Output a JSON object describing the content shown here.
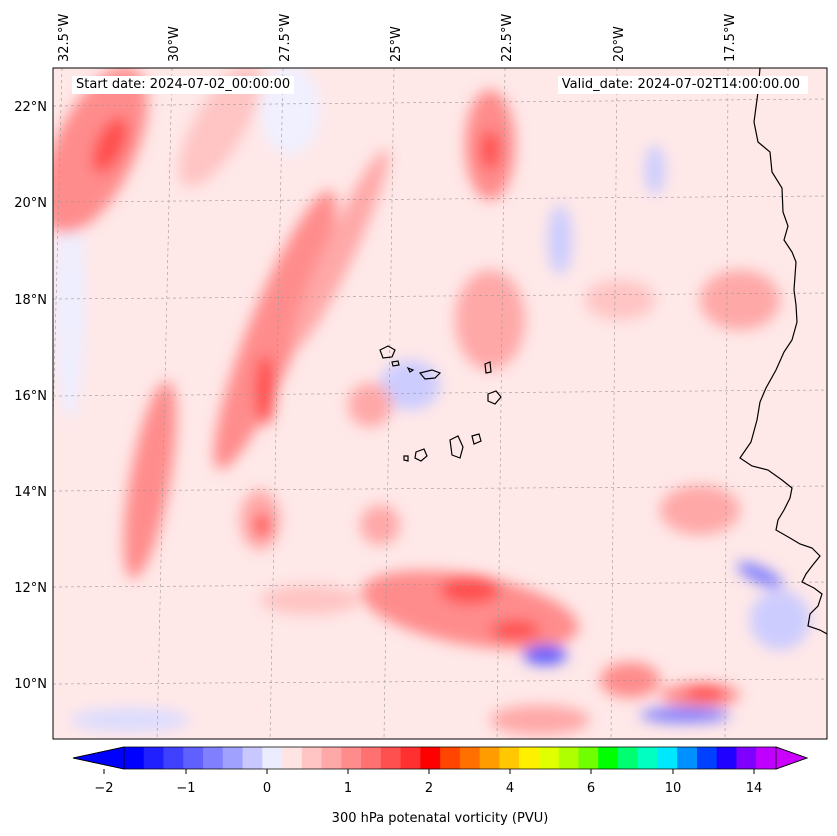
{
  "header": {
    "start_date": "Start date: 2024-07-02_00:00:00",
    "valid_date": "Valid_date: 2024-07-02T14:00:00.00"
  },
  "map": {
    "lon_labels": [
      "32.5°W",
      "30°W",
      "27.5°W",
      "25°W",
      "22.5°W",
      "20°W",
      "17.5°W"
    ],
    "lat_labels": [
      "22°N",
      "20°N",
      "18°N",
      "16°N",
      "14°N",
      "12°N",
      "10°N"
    ],
    "features": [
      "cabo-verde-islands",
      "west-africa-coastline"
    ],
    "field": "300 hPa potential vorticity"
  },
  "colorbar": {
    "label": "300 hPa potenatal vorticity (PVU)",
    "tick_labels": [
      "−2",
      "−1",
      "0",
      "1",
      "2",
      "4",
      "6",
      "10",
      "14"
    ],
    "colors": [
      "#0000ff",
      "#2020ff",
      "#4040ff",
      "#6060ff",
      "#8080ff",
      "#a0a0ff",
      "#c8c8ff",
      "#ececff",
      "#ffe4e4",
      "#ffc4c4",
      "#ffa8a8",
      "#ff8c8c",
      "#ff7070",
      "#ff5050",
      "#ff3030",
      "#ff0000",
      "#ff4500",
      "#ff7000",
      "#ff9d00",
      "#ffc800",
      "#fff000",
      "#e0ff00",
      "#b0ff00",
      "#70ff00",
      "#00ff00",
      "#00ff70",
      "#00ffc0",
      "#00e8ff",
      "#0090ff",
      "#0040ff",
      "#2000ff",
      "#8000ff",
      "#c000ff"
    ]
  }
}
